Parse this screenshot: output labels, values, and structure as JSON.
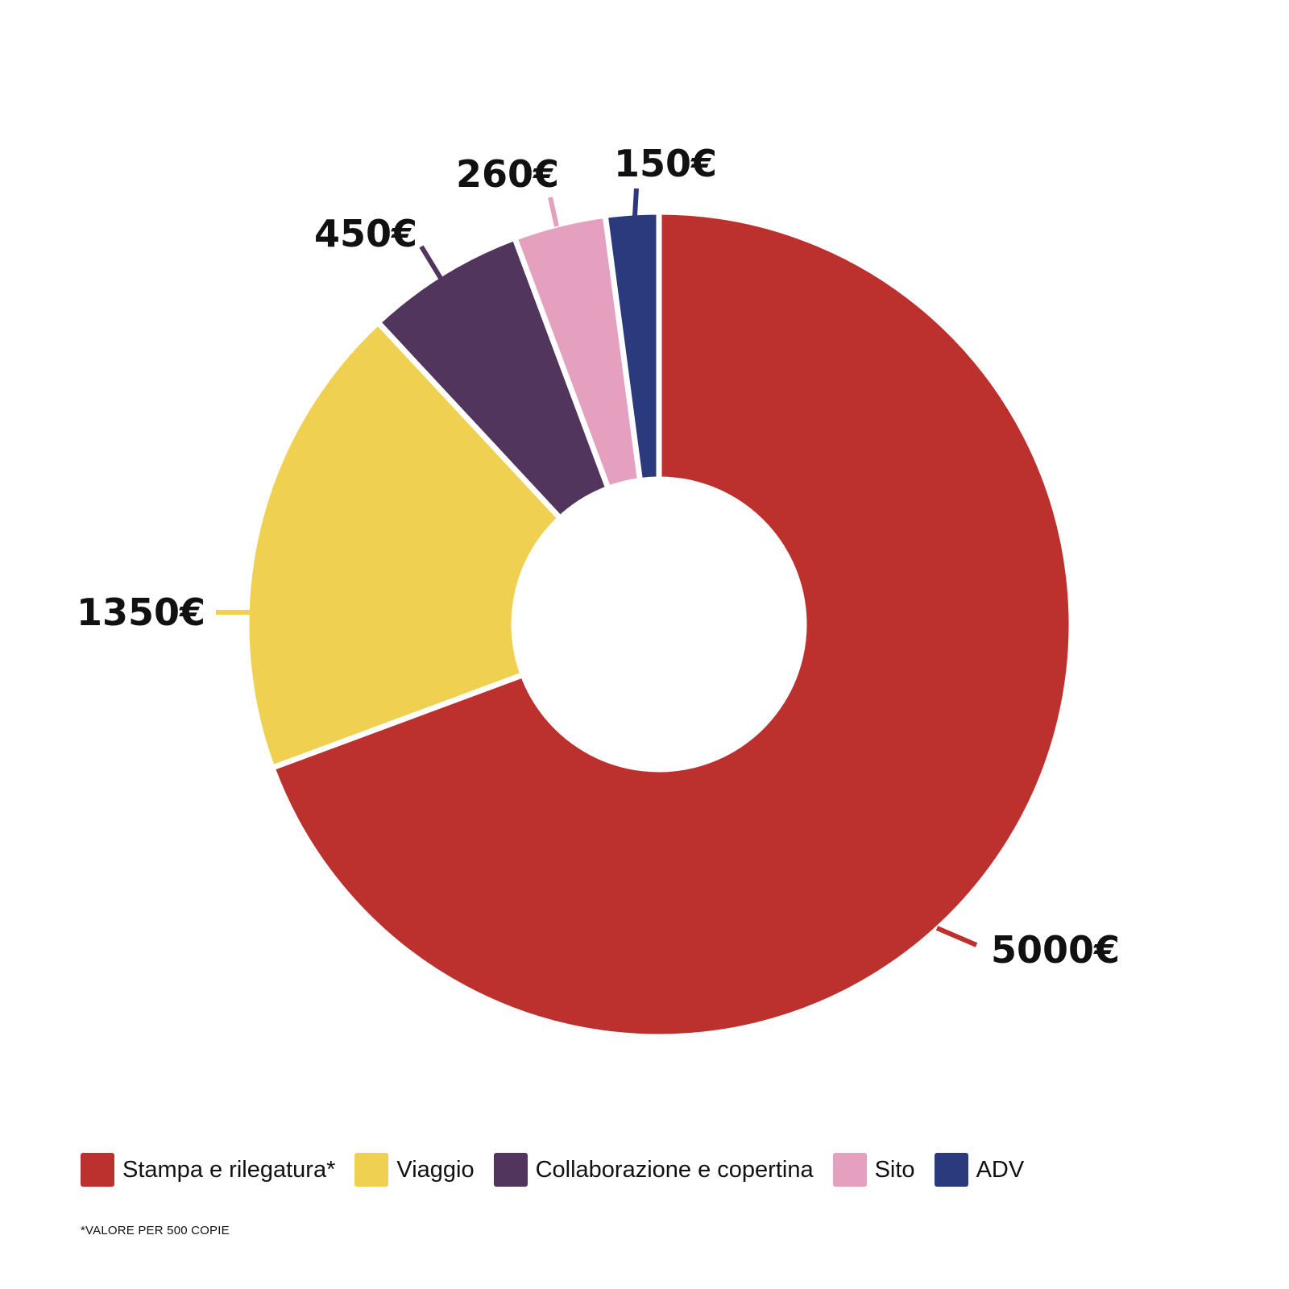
{
  "chart_data": {
    "type": "pie",
    "variant": "donut",
    "slices": [
      {
        "name": "Stampa e rilegatura*",
        "value": 5000,
        "label": "5000€",
        "color": "#BC302D"
      },
      {
        "name": "Viaggio",
        "value": 1350,
        "label": "1350€",
        "color": "#F0D050"
      },
      {
        "name": "Collaborazione e copertina",
        "value": 450,
        "label": "450€",
        "color": "#52355C"
      },
      {
        "name": "Sito",
        "value": 260,
        "label": "260€",
        "color": "#E5A0BF"
      },
      {
        "name": "ADV",
        "value": 150,
        "label": "150€",
        "color": "#2B3A7C"
      }
    ],
    "legend_placement": "bottom-left"
  },
  "footnote": "*VALORE PER 500 COPIE"
}
